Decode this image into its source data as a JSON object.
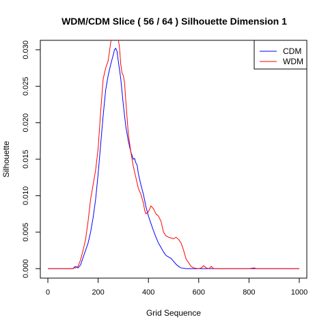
{
  "chart_data": {
    "type": "line",
    "title": "WDM/CDM Slice ( 56 / 64 )  Silhouette Dimension 1",
    "xlabel": "Grid Sequence",
    "ylabel": "Silhouette",
    "xlim": [
      -30,
      1030
    ],
    "ylim": [
      -0.0013,
      0.0313
    ],
    "x_ticks": [
      0,
      200,
      400,
      600,
      800,
      1000
    ],
    "x_tick_labels": [
      "0",
      "200",
      "400",
      "600",
      "800",
      "1000"
    ],
    "y_ticks": [
      0.0,
      0.005,
      0.01,
      0.015,
      0.02,
      0.025,
      0.03
    ],
    "y_tick_labels": [
      "0.000",
      "0.005",
      "0.010",
      "0.015",
      "0.020",
      "0.025",
      "0.030"
    ],
    "grid": false,
    "legend": "top-right",
    "series": [
      {
        "name": "CDM",
        "color": "#0000ff",
        "x": [
          0,
          50,
          100,
          105,
          110,
          120,
          130,
          140,
          150,
          160,
          170,
          180,
          190,
          200,
          210,
          220,
          230,
          240,
          250,
          260,
          265,
          270,
          275,
          280,
          290,
          300,
          310,
          320,
          330,
          340,
          345,
          350,
          355,
          360,
          370,
          380,
          390,
          400,
          410,
          420,
          430,
          440,
          450,
          460,
          470,
          480,
          490,
          500,
          510,
          520,
          530,
          550,
          600,
          650,
          700,
          750,
          800,
          820,
          850,
          900,
          950,
          1000
        ],
        "y": [
          0,
          0,
          0,
          0.0002,
          0.0003,
          0.0001,
          0.0005,
          0.0015,
          0.0025,
          0.0035,
          0.005,
          0.007,
          0.0095,
          0.013,
          0.017,
          0.021,
          0.0245,
          0.0265,
          0.028,
          0.0293,
          0.03,
          0.0302,
          0.0298,
          0.0285,
          0.026,
          0.0225,
          0.0195,
          0.0175,
          0.016,
          0.015,
          0.0151,
          0.0145,
          0.0142,
          0.013,
          0.0115,
          0.0102,
          0.0085,
          0.0072,
          0.0062,
          0.0052,
          0.0043,
          0.0035,
          0.0029,
          0.0023,
          0.0018,
          0.0016,
          0.0014,
          0.001,
          0.0006,
          0.0003,
          0.0001,
          0,
          0,
          0,
          0,
          0,
          0,
          0,
          0,
          0,
          0,
          0
        ]
      },
      {
        "name": "WDM",
        "color": "#ff0000",
        "x": [
          0,
          50,
          100,
          105,
          110,
          120,
          130,
          140,
          150,
          160,
          170,
          180,
          190,
          200,
          210,
          220,
          230,
          240,
          250,
          255,
          260,
          265,
          270,
          280,
          285,
          290,
          295,
          300,
          305,
          310,
          320,
          330,
          340,
          350,
          360,
          370,
          380,
          385,
          390,
          400,
          405,
          410,
          420,
          430,
          440,
          450,
          460,
          470,
          480,
          490,
          500,
          510,
          520,
          530,
          540,
          550,
          560,
          570,
          580,
          600,
          610,
          620,
          630,
          640,
          650,
          660,
          700,
          800,
          820,
          830,
          900,
          1000
        ],
        "y": [
          0,
          0,
          0,
          0.0001,
          0.0001,
          0.0003,
          0.0012,
          0.0025,
          0.004,
          0.0065,
          0.0095,
          0.0115,
          0.0135,
          0.0165,
          0.0215,
          0.026,
          0.0275,
          0.0285,
          0.031,
          0.0318,
          0.0325,
          0.0322,
          0.0325,
          0.0315,
          0.0303,
          0.028,
          0.0268,
          0.0265,
          0.0255,
          0.023,
          0.0185,
          0.016,
          0.014,
          0.0125,
          0.011,
          0.0102,
          0.009,
          0.008,
          0.0075,
          0.0078,
          0.0082,
          0.0086,
          0.0082,
          0.0075,
          0.0072,
          0.0065,
          0.005,
          0.0045,
          0.0043,
          0.0042,
          0.0041,
          0.0043,
          0.004,
          0.0035,
          0.0025,
          0.0013,
          0.0008,
          0.0003,
          0.0001,
          0,
          0.0001,
          0.0004,
          0.0001,
          0,
          0.0003,
          0,
          0,
          0,
          0.0001,
          0,
          0,
          0
        ]
      }
    ]
  }
}
